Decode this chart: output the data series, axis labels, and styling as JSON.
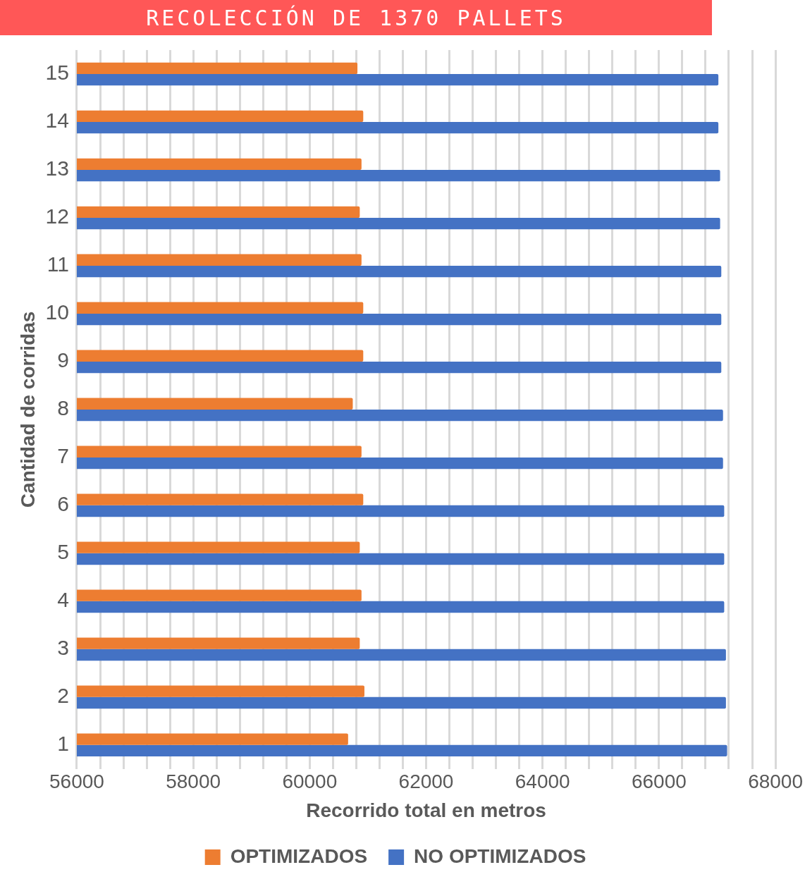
{
  "chart_data": {
    "type": "bar",
    "orientation": "horizontal",
    "title": "RECOLECCIÓN DE 1370 PALLETS",
    "xlabel": "Recorrido total en metros",
    "ylabel": "Cantidad de corridas",
    "categories": [
      "15",
      "14",
      "13",
      "12",
      "11",
      "10",
      "9",
      "8",
      "7",
      "6",
      "5",
      "4",
      "3",
      "2",
      "1"
    ],
    "series": [
      {
        "name": "OPTIMIZADOS",
        "color": "#ed7d31",
        "values": [
          60820,
          60920,
          60890,
          60860,
          60890,
          60920,
          60920,
          60740,
          60890,
          60920,
          60860,
          60890,
          60860,
          60940,
          60660
        ]
      },
      {
        "name": "NO OPTIMIZADOS",
        "color": "#4472c4",
        "values": [
          67020,
          67020,
          67050,
          67050,
          67070,
          67070,
          67070,
          67100,
          67100,
          67120,
          67120,
          67120,
          67150,
          67150,
          67170
        ]
      }
    ],
    "xlim": [
      56000,
      68000
    ],
    "xticks": [
      56000,
      {
        "value": 56400,
        "label": null
      },
      {
        "value": 56800,
        "label": null
      },
      {
        "value": 57200,
        "label": null
      },
      {
        "value": 57600,
        "label": null
      },
      58000,
      {
        "value": 58400,
        "label": null
      },
      {
        "value": 58800,
        "label": null
      },
      {
        "value": 59200,
        "label": null
      },
      {
        "value": 59600,
        "label": null
      },
      60000,
      {
        "value": 60400,
        "label": null
      },
      {
        "value": 60800,
        "label": null
      },
      {
        "value": 61200,
        "label": null
      },
      {
        "value": 61600,
        "label": null
      },
      62000,
      {
        "value": 62400,
        "label": null
      },
      {
        "value": 62800,
        "label": null
      },
      {
        "value": 63200,
        "label": null
      },
      {
        "value": 63600,
        "label": null
      },
      64000,
      {
        "value": 64400,
        "label": null
      },
      {
        "value": 64800,
        "label": null
      },
      {
        "value": 65200,
        "label": null
      },
      {
        "value": 65600,
        "label": null
      },
      66000,
      {
        "value": 66400,
        "label": null
      },
      {
        "value": 66800,
        "label": null
      },
      {
        "value": 67200,
        "label": null
      },
      {
        "value": 67600,
        "label": null
      },
      68000
    ],
    "grid": "x",
    "legend": "bottom"
  }
}
